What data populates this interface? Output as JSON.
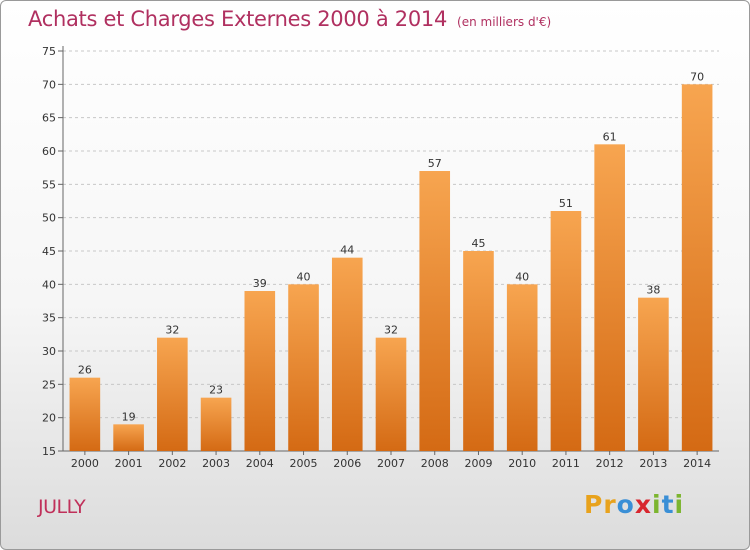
{
  "header": {
    "title": "Achats et Charges Externes 2000 à 2014",
    "subtitle": "(en milliers d'€)"
  },
  "footer": {
    "commune": "JULLY",
    "logo_letters": [
      "P",
      "r",
      "o",
      "x",
      "i",
      "t",
      "i"
    ],
    "logo_text": "Proxiti",
    "logo_colors": [
      "#e8a21c",
      "#e8a21c",
      "#3a8fd6",
      "#d8262e",
      "#7cb52f",
      "#3a8fd6",
      "#7cb52f"
    ]
  },
  "colors": {
    "bar_top": "#f7a550",
    "bar_bottom": "#d46a14",
    "title": "#b03060"
  },
  "chart_data": {
    "type": "bar",
    "title": "Achats et Charges Externes 2000 à 2014",
    "subtitle": "(en milliers d'€)",
    "xlabel": "",
    "ylabel": "",
    "categories": [
      "2000",
      "2001",
      "2002",
      "2003",
      "2004",
      "2005",
      "2006",
      "2007",
      "2008",
      "2009",
      "2010",
      "2011",
      "2012",
      "2013",
      "2014"
    ],
    "values": [
      26,
      19,
      32,
      23,
      39,
      40,
      44,
      32,
      57,
      45,
      40,
      51,
      61,
      38,
      70
    ],
    "ylim": [
      15,
      75
    ],
    "yticks": [
      15,
      20,
      25,
      30,
      35,
      40,
      45,
      50,
      55,
      60,
      65,
      70,
      75
    ],
    "grid": "horizontal dashed"
  }
}
